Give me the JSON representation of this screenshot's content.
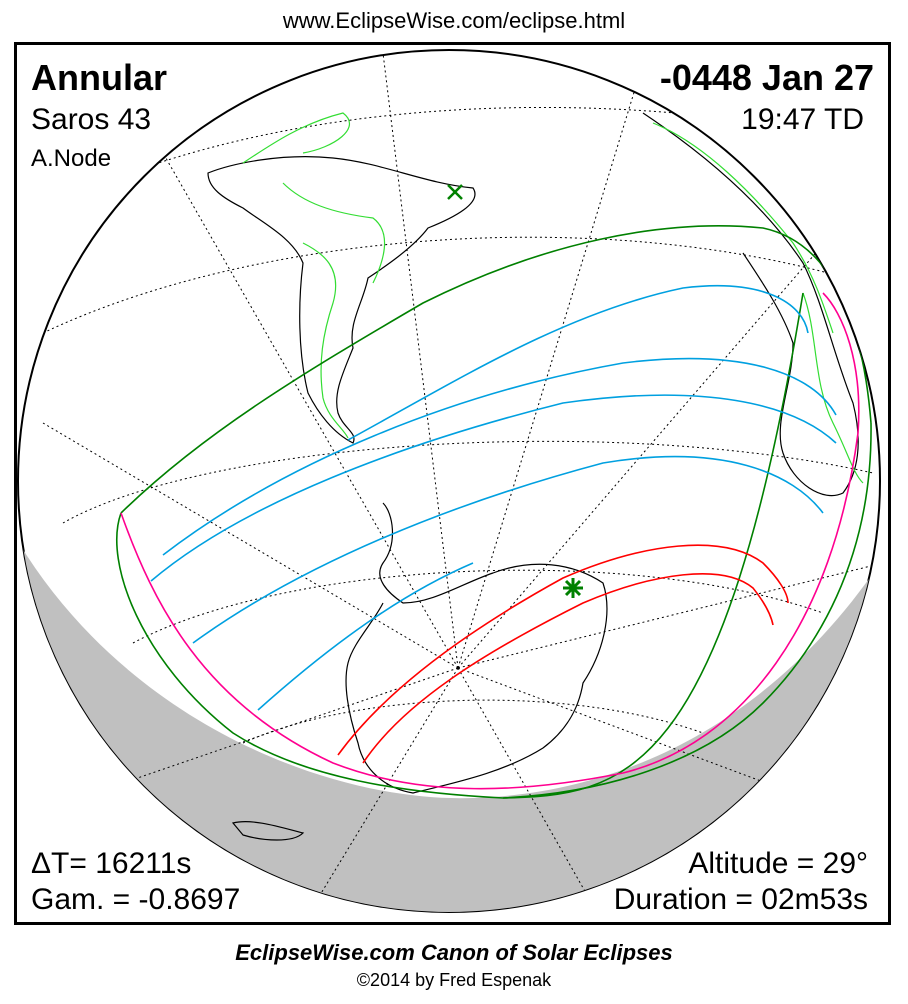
{
  "header_url": "www.EclipseWise.com/eclipse.html",
  "eclipse": {
    "type": "Annular",
    "date": "-0448 Jan 27",
    "saros": "Saros  43",
    "time": "19:47 TD",
    "node": "A.Node",
    "delta_t": "ΔT=  16211s",
    "gamma": "Gam. = -0.8697",
    "altitude": "Altitude = 29°",
    "duration": "Duration = 02m53s"
  },
  "colors": {
    "penumbral_limits": "#008000",
    "penumbra_lines": "#00a0e0",
    "rise_set_curve": "#ff0090",
    "central_path": "#ff0000",
    "borders": "#33dd33",
    "night": "#c0c0c0"
  },
  "markers": {
    "greatest_eclipse": "green-star-icon",
    "subsolar_point": "green-x-icon"
  },
  "footer": {
    "title": "EclipseWise.com Canon of Solar Eclipses",
    "copyright": "©2014 by Fred Espenak"
  }
}
